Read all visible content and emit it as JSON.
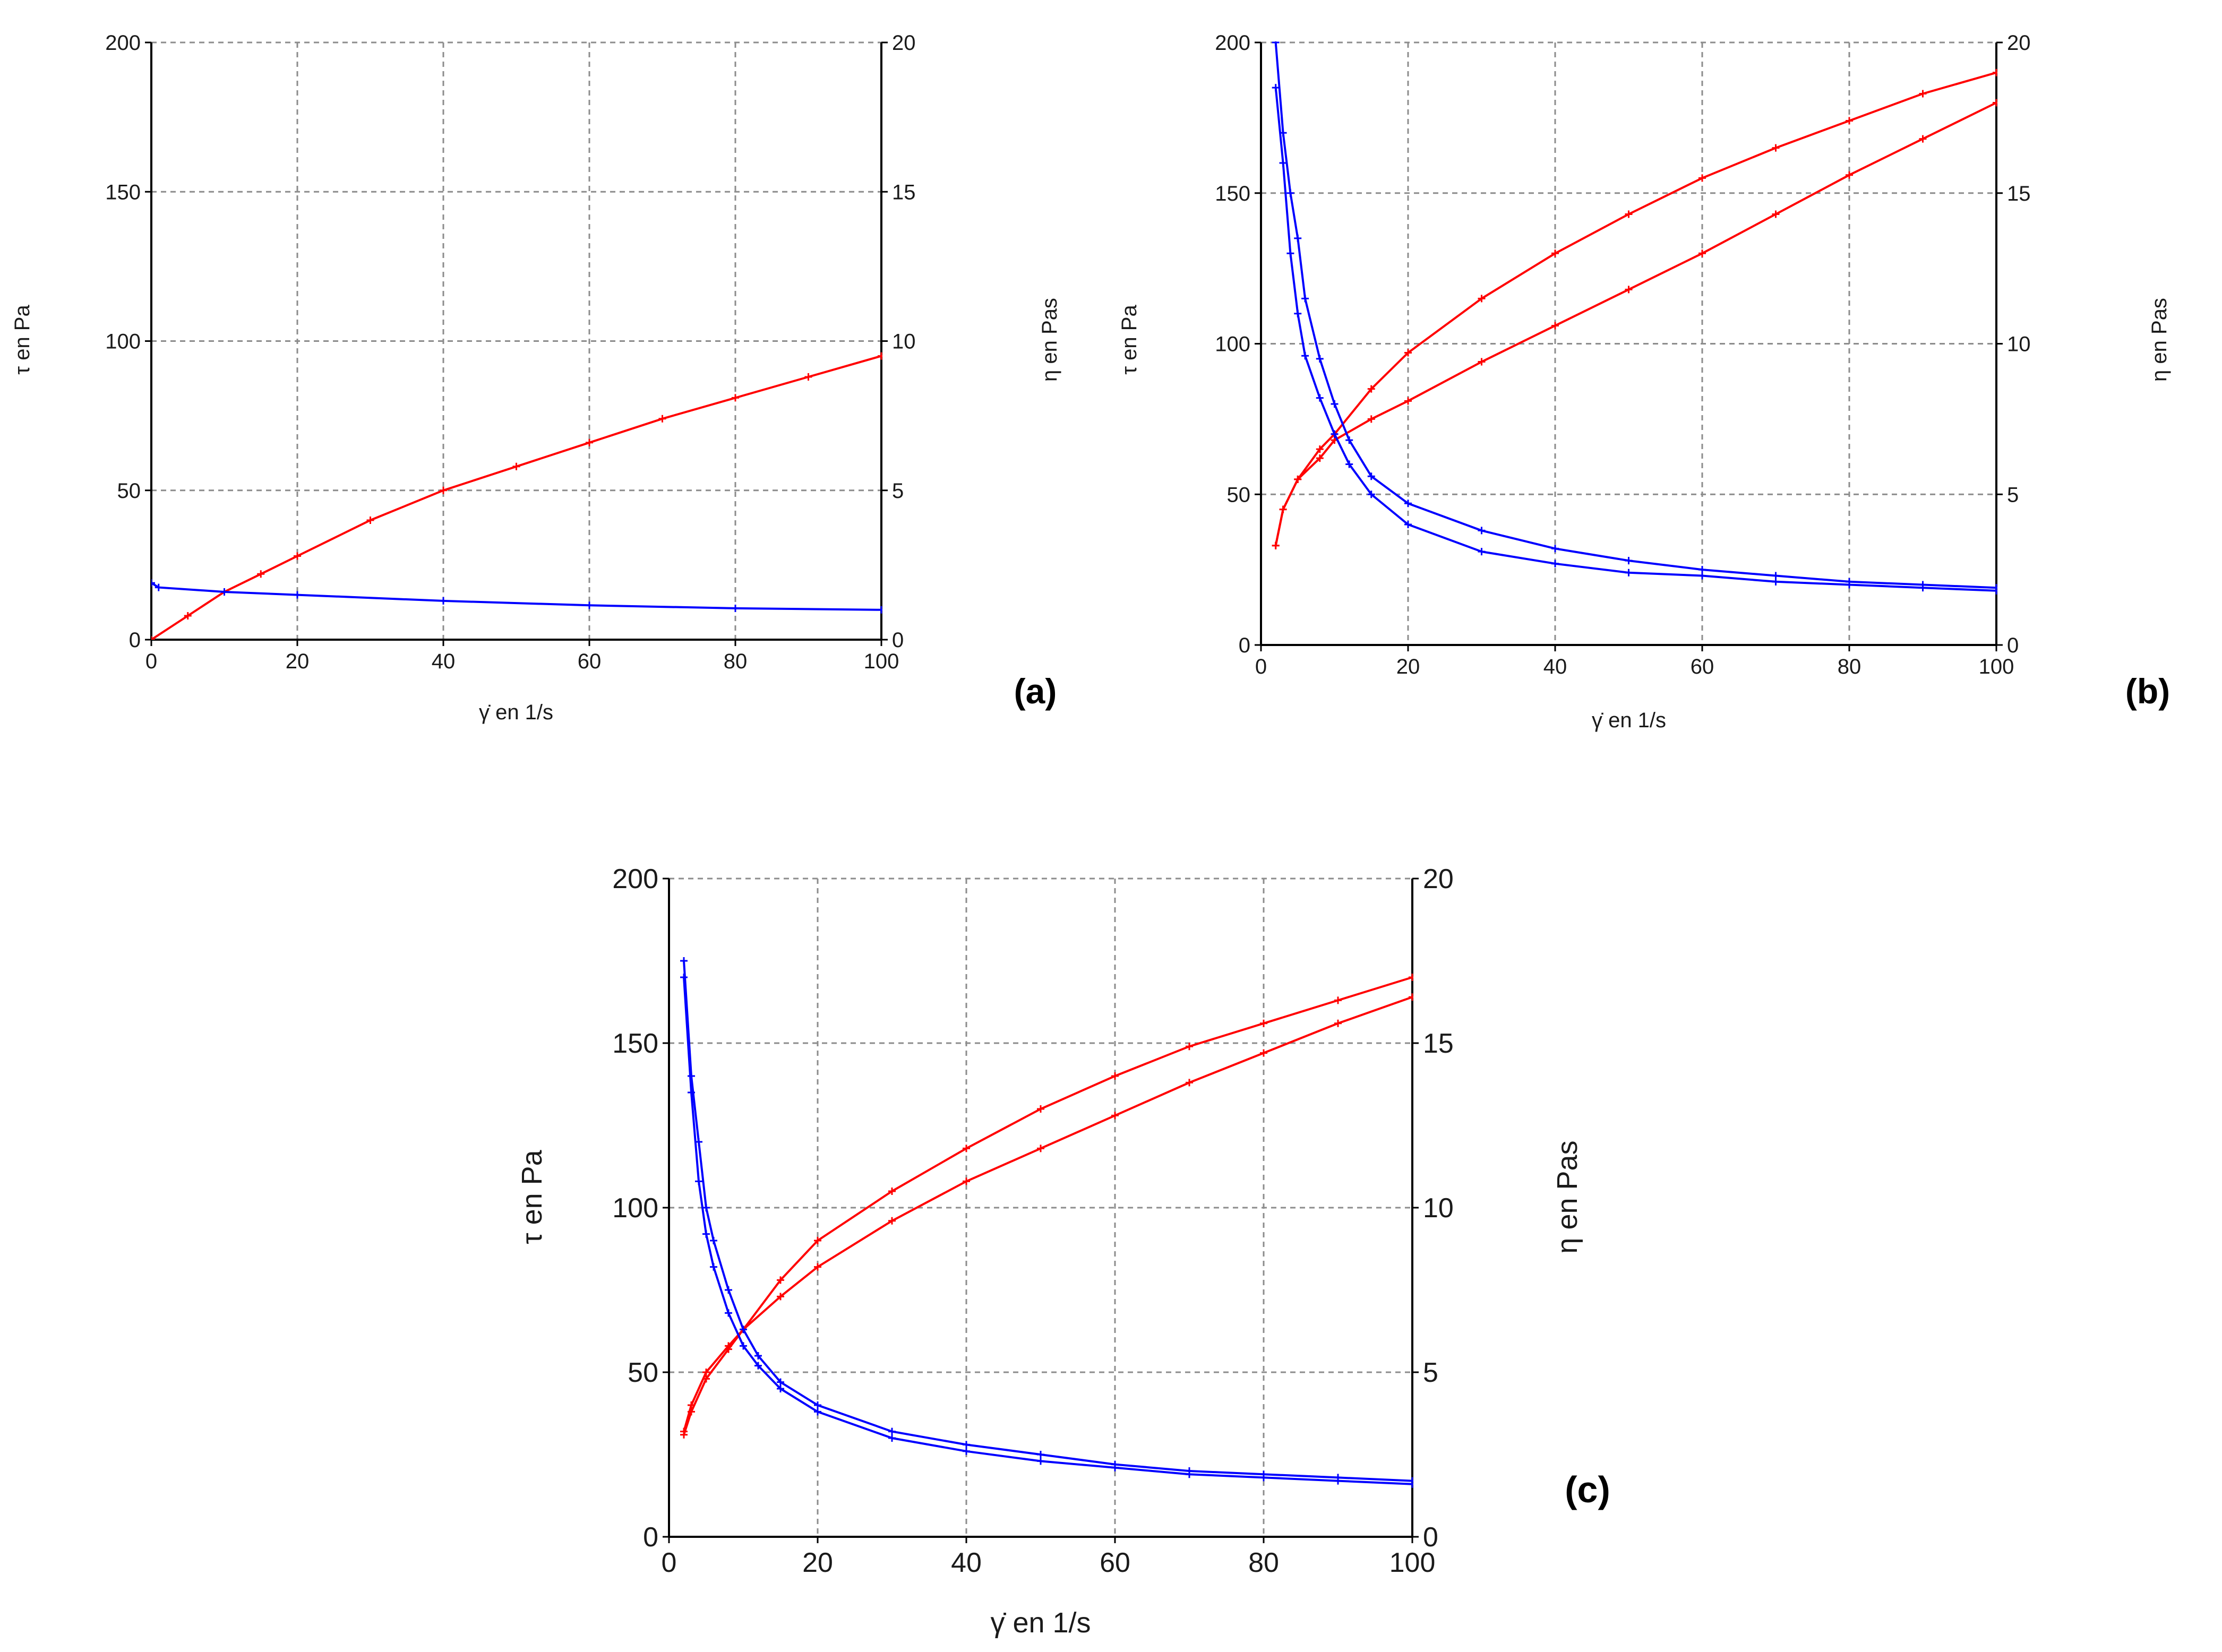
{
  "chart_data": [
    {
      "panel_label": "(a)",
      "type": "line",
      "xlabel": "γ̇ en 1/s",
      "ylabel_left": "τ en Pa",
      "ylabel_right": "η en Pas",
      "xlim": [
        0,
        100
      ],
      "ylim_left": [
        0,
        200
      ],
      "ylim_right": [
        0,
        20
      ],
      "x_ticks": [
        "0",
        "20",
        "40",
        "60",
        "80",
        "100"
      ],
      "y_left_ticks": [
        "0",
        "50",
        "100",
        "150",
        "200"
      ],
      "y_right_ticks": [
        "0",
        "5",
        "10",
        "15",
        "20"
      ],
      "grid": true,
      "series": [
        {
          "axis": "left",
          "color": "#ff0000",
          "x": [
            0,
            5,
            10,
            15,
            20,
            30,
            40,
            50,
            60,
            70,
            80,
            90,
            100
          ],
          "y": [
            0,
            8,
            16,
            22,
            28,
            40,
            50,
            58,
            66,
            74,
            81,
            88,
            95
          ]
        },
        {
          "axis": "right",
          "color": "#0000ff",
          "x": [
            0,
            1,
            10,
            20,
            40,
            60,
            80,
            100
          ],
          "y": [
            1.9,
            1.75,
            1.6,
            1.5,
            1.3,
            1.15,
            1.05,
            1.0
          ]
        }
      ]
    },
    {
      "panel_label": "(b)",
      "type": "line",
      "xlabel": "γ̇ en 1/s",
      "ylabel_left": "τ en Pa",
      "ylabel_right": "η en Pas",
      "xlim": [
        0,
        100
      ],
      "ylim_left": [
        0,
        200
      ],
      "ylim_right": [
        0,
        20
      ],
      "x_ticks": [
        "0",
        "20",
        "40",
        "60",
        "80",
        "100"
      ],
      "y_left_ticks": [
        "0",
        "50",
        "100",
        "150",
        "200"
      ],
      "y_right_ticks": [
        "0",
        "5",
        "10",
        "15",
        "20"
      ],
      "grid": true,
      "series": [
        {
          "axis": "left",
          "color": "#ff0000",
          "x": [
            2,
            3,
            5,
            8,
            10,
            15,
            20,
            30,
            40,
            50,
            60,
            70,
            80,
            90,
            100
          ],
          "y": [
            33,
            45,
            55,
            65,
            70,
            85,
            97,
            115,
            130,
            143,
            155,
            165,
            174,
            183,
            190
          ]
        },
        {
          "axis": "left",
          "color": "#ff0000",
          "x": [
            100,
            90,
            80,
            70,
            60,
            50,
            40,
            30,
            20,
            15,
            10,
            8,
            5,
            3,
            2
          ],
          "y": [
            180,
            168,
            156,
            143,
            130,
            118,
            106,
            94,
            81,
            75,
            68,
            62,
            55,
            45,
            33
          ]
        },
        {
          "axis": "right",
          "color": "#0000ff",
          "x": [
            2,
            3,
            4,
            5,
            6,
            8,
            10,
            12,
            15,
            20,
            30,
            40,
            50,
            60,
            70,
            80,
            90,
            100
          ],
          "y": [
            20,
            17,
            15,
            13.5,
            11.5,
            9.5,
            8,
            6.8,
            5.6,
            4.7,
            3.8,
            3.2,
            2.8,
            2.5,
            2.3,
            2.1,
            2.0,
            1.9
          ]
        },
        {
          "axis": "right",
          "color": "#0000ff",
          "x": [
            100,
            90,
            80,
            70,
            60,
            50,
            40,
            30,
            20,
            15,
            12,
            10,
            8,
            6,
            5,
            4,
            3,
            2
          ],
          "y": [
            1.8,
            1.9,
            2.0,
            2.1,
            2.3,
            2.4,
            2.7,
            3.1,
            4.0,
            5.0,
            6.0,
            7.0,
            8.2,
            9.6,
            11,
            13,
            16,
            18.5
          ]
        }
      ]
    },
    {
      "panel_label": "(c)",
      "type": "line",
      "xlabel": "γ̇ en 1/s",
      "ylabel_left": "τ en Pa",
      "ylabel_right": "η en Pas",
      "xlim": [
        0,
        100
      ],
      "ylim_left": [
        0,
        200
      ],
      "ylim_right": [
        0,
        20
      ],
      "x_ticks": [
        "0",
        "20",
        "40",
        "60",
        "80",
        "100"
      ],
      "y_left_ticks": [
        "0",
        "50",
        "100",
        "150",
        "200"
      ],
      "y_right_ticks": [
        "0",
        "5",
        "10",
        "15",
        "20"
      ],
      "grid": true,
      "series": [
        {
          "axis": "left",
          "color": "#ff0000",
          "x": [
            2,
            3,
            5,
            8,
            10,
            15,
            20,
            30,
            40,
            50,
            60,
            70,
            80,
            90,
            100
          ],
          "y": [
            32,
            40,
            50,
            58,
            63,
            78,
            90,
            105,
            118,
            130,
            140,
            149,
            156,
            163,
            170
          ]
        },
        {
          "axis": "left",
          "color": "#ff0000",
          "x": [
            100,
            90,
            80,
            70,
            60,
            50,
            40,
            30,
            20,
            15,
            10,
            8,
            5,
            3,
            2
          ],
          "y": [
            164,
            156,
            147,
            138,
            128,
            118,
            108,
            96,
            82,
            73,
            63,
            57,
            48,
            38,
            31
          ]
        },
        {
          "axis": "right",
          "color": "#0000ff",
          "x": [
            2,
            3,
            4,
            5,
            6,
            8,
            10,
            12,
            15,
            20,
            30,
            40,
            50,
            60,
            70,
            80,
            90,
            100
          ],
          "y": [
            17.5,
            14,
            12,
            10,
            9,
            7.5,
            6.3,
            5.5,
            4.7,
            4.0,
            3.2,
            2.8,
            2.5,
            2.2,
            2.0,
            1.9,
            1.8,
            1.7
          ]
        },
        {
          "axis": "right",
          "color": "#0000ff",
          "x": [
            100,
            90,
            80,
            70,
            60,
            50,
            40,
            30,
            20,
            15,
            12,
            10,
            8,
            6,
            5,
            4,
            3,
            2
          ],
          "y": [
            1.6,
            1.7,
            1.8,
            1.9,
            2.1,
            2.3,
            2.6,
            3.0,
            3.8,
            4.5,
            5.2,
            5.8,
            6.8,
            8.2,
            9.2,
            10.8,
            13.5,
            17.0
          ]
        }
      ]
    }
  ]
}
